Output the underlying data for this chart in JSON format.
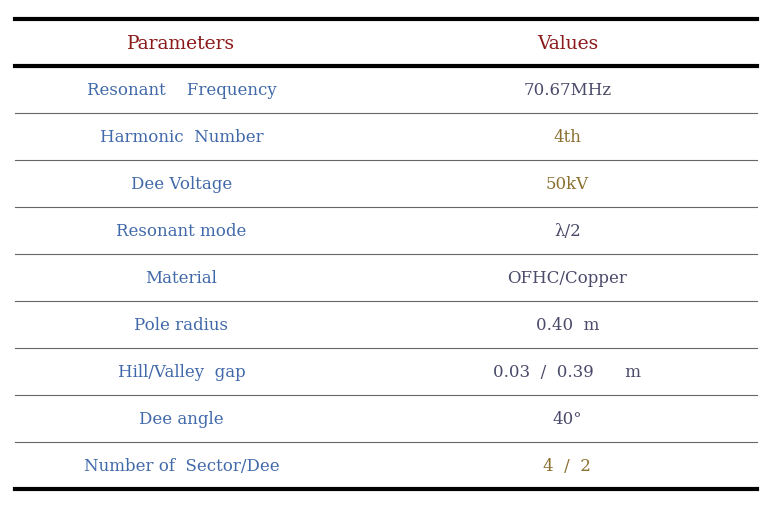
{
  "header": [
    "Parameters",
    "Values"
  ],
  "rows": [
    [
      "Resonant    Frequency",
      "70.67MHz"
    ],
    [
      "Harmonic  Number",
      "4th"
    ],
    [
      "Dee Voltage",
      "50kV"
    ],
    [
      "Resonant mode",
      "λ/2"
    ],
    [
      "Material",
      "OFHC/Copper"
    ],
    [
      "Pole radius",
      "0.40  m"
    ],
    [
      "Hill/Valley  gap",
      "0.03  /  0.39      m"
    ],
    [
      "Dee angle",
      "40°"
    ],
    [
      "Number of  Sector/Dee",
      "4  /  2"
    ]
  ],
  "header_color": "#8B1A1A",
  "param_color": "#4169AA",
  "value_colors": [
    "#4A4A6A",
    "#8B7030",
    "#8B7030",
    "#4A4A6A",
    "#4A4A6A",
    "#4A4A6A",
    "#4A4A6A",
    "#4A4A6A",
    "#8B7030"
  ],
  "bg_color": "#FFFFFF",
  "thick_line_color": "#000000",
  "thin_line_color": "#666666",
  "fig_width": 7.72,
  "fig_height": 5.1,
  "dpi": 100,
  "col_split": 0.47
}
